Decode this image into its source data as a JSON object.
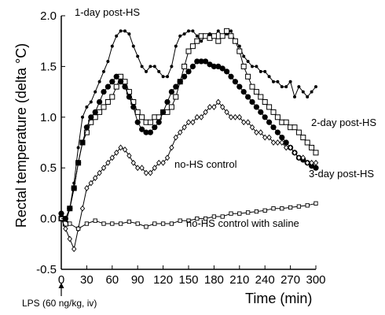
{
  "chart_data": {
    "type": "line",
    "title": "",
    "xlabel": "Time (min)",
    "ylabel": "Rectal temperature (delta °C)",
    "xlim": [
      0,
      300
    ],
    "ylim": [
      -0.5,
      2.0
    ],
    "xticks": [
      0,
      30,
      60,
      90,
      120,
      150,
      180,
      210,
      240,
      270,
      300
    ],
    "yticks": [
      -0.5,
      0.0,
      0.5,
      1.0,
      1.5,
      2.0
    ],
    "xtick_labels": [
      "0",
      "30",
      "60",
      "90",
      "120",
      "150",
      "180",
      "210",
      "240",
      "270",
      "300"
    ],
    "ytick_labels": [
      "-0.5",
      "0.0",
      "0.5",
      "1.0",
      "1.5",
      "2.0"
    ],
    "grid": false,
    "annotation": {
      "text": "LPS (60 ng/kg, iv)",
      "arrow_x": 0
    },
    "series": [
      {
        "name": "1-day post-HS",
        "marker": "small-filled-dot",
        "color": "#000000",
        "x": [
          0,
          5,
          10,
          15,
          20,
          25,
          30,
          35,
          40,
          45,
          50,
          55,
          60,
          65,
          70,
          75,
          80,
          85,
          90,
          95,
          100,
          105,
          110,
          115,
          120,
          125,
          130,
          135,
          140,
          145,
          150,
          155,
          160,
          165,
          170,
          175,
          180,
          185,
          190,
          195,
          200,
          205,
          210,
          215,
          220,
          225,
          230,
          235,
          240,
          245,
          250,
          255,
          260,
          265,
          270,
          275,
          280,
          285,
          290,
          295,
          300
        ],
        "y": [
          0.05,
          0.0,
          0.1,
          0.35,
          0.7,
          1.0,
          1.1,
          1.15,
          1.25,
          1.35,
          1.45,
          1.55,
          1.7,
          1.8,
          1.85,
          1.85,
          1.82,
          1.7,
          1.6,
          1.5,
          1.45,
          1.5,
          1.5,
          1.45,
          1.4,
          1.4,
          1.5,
          1.7,
          1.8,
          1.82,
          1.85,
          1.85,
          1.8,
          1.75,
          1.8,
          1.82,
          1.8,
          1.85,
          1.8,
          1.82,
          1.85,
          1.75,
          1.7,
          1.6,
          1.55,
          1.5,
          1.5,
          1.45,
          1.45,
          1.4,
          1.35,
          1.35,
          1.3,
          1.3,
          1.35,
          1.2,
          1.3,
          1.25,
          1.2,
          1.25,
          1.3
        ]
      },
      {
        "name": "2-day post-HS",
        "marker": "open-square",
        "color": "#000000",
        "x": [
          0,
          5,
          10,
          15,
          20,
          25,
          30,
          35,
          40,
          45,
          50,
          55,
          60,
          65,
          70,
          75,
          80,
          85,
          90,
          95,
          100,
          105,
          110,
          115,
          120,
          125,
          130,
          135,
          140,
          145,
          150,
          155,
          160,
          165,
          170,
          175,
          180,
          185,
          190,
          195,
          200,
          205,
          210,
          215,
          220,
          225,
          230,
          235,
          240,
          245,
          250,
          255,
          260,
          265,
          270,
          275,
          280,
          285,
          290,
          295,
          300
        ],
        "y": [
          0.0,
          -0.05,
          0.1,
          0.3,
          0.55,
          0.75,
          0.85,
          0.95,
          1.0,
          1.05,
          1.1,
          1.15,
          1.2,
          1.3,
          1.4,
          1.35,
          1.25,
          1.15,
          1.05,
          1.0,
          0.95,
          0.95,
          1.0,
          1.0,
          1.05,
          1.05,
          1.1,
          1.2,
          1.35,
          1.5,
          1.65,
          1.7,
          1.75,
          1.8,
          1.8,
          1.78,
          1.8,
          1.75,
          1.8,
          1.85,
          1.8,
          1.75,
          1.65,
          1.5,
          1.4,
          1.3,
          1.25,
          1.2,
          1.15,
          1.1,
          1.05,
          1.0,
          0.95,
          0.95,
          0.9,
          0.9,
          0.85,
          0.8,
          0.75,
          0.7,
          0.65
        ]
      },
      {
        "name": "3-day post-HS",
        "marker": "large-filled-dot",
        "color": "#000000",
        "x": [
          0,
          5,
          10,
          15,
          20,
          25,
          30,
          35,
          40,
          45,
          50,
          55,
          60,
          65,
          70,
          75,
          80,
          85,
          90,
          95,
          100,
          105,
          110,
          115,
          120,
          125,
          130,
          135,
          140,
          145,
          150,
          155,
          160,
          165,
          170,
          175,
          180,
          185,
          190,
          195,
          200,
          205,
          210,
          215,
          220,
          225,
          230,
          235,
          240,
          245,
          250,
          255,
          260,
          265,
          270,
          275,
          280,
          285,
          290,
          295,
          300
        ],
        "y": [
          0.05,
          0.0,
          0.1,
          0.3,
          0.55,
          0.75,
          0.9,
          1.0,
          1.05,
          1.15,
          1.25,
          1.3,
          1.35,
          1.4,
          1.35,
          1.3,
          1.2,
          1.1,
          0.95,
          0.88,
          0.85,
          0.85,
          0.9,
          0.95,
          1.05,
          1.15,
          1.25,
          1.3,
          1.35,
          1.4,
          1.45,
          1.5,
          1.55,
          1.55,
          1.55,
          1.52,
          1.5,
          1.5,
          1.48,
          1.45,
          1.4,
          1.35,
          1.3,
          1.25,
          1.2,
          1.15,
          1.1,
          1.05,
          1.0,
          0.95,
          0.9,
          0.85,
          0.8,
          0.75,
          0.7,
          0.65,
          0.6,
          0.58,
          0.55,
          0.52,
          0.5
        ]
      },
      {
        "name": "no-HS control",
        "marker": "open-diamond",
        "color": "#000000",
        "x": [
          0,
          5,
          10,
          15,
          20,
          25,
          30,
          35,
          40,
          45,
          50,
          55,
          60,
          65,
          70,
          75,
          80,
          85,
          90,
          95,
          100,
          105,
          110,
          115,
          120,
          125,
          130,
          135,
          140,
          145,
          150,
          155,
          160,
          165,
          170,
          175,
          180,
          185,
          190,
          195,
          200,
          205,
          210,
          215,
          220,
          225,
          230,
          235,
          240,
          245,
          250,
          255,
          260,
          265,
          270,
          275,
          280,
          285,
          290,
          295,
          300
        ],
        "y": [
          0.0,
          -0.1,
          -0.2,
          -0.3,
          -0.1,
          0.1,
          0.3,
          0.35,
          0.4,
          0.45,
          0.5,
          0.55,
          0.6,
          0.65,
          0.7,
          0.68,
          0.62,
          0.55,
          0.5,
          0.5,
          0.45,
          0.45,
          0.5,
          0.55,
          0.55,
          0.6,
          0.7,
          0.8,
          0.85,
          0.9,
          0.95,
          0.95,
          1.0,
          1.0,
          1.05,
          1.1,
          1.1,
          1.15,
          1.1,
          1.05,
          1.0,
          1.0,
          1.0,
          0.95,
          0.95,
          0.9,
          0.85,
          0.85,
          0.8,
          0.8,
          0.75,
          0.75,
          0.75,
          0.7,
          0.7,
          0.65,
          0.6,
          0.6,
          0.55,
          0.55,
          0.55
        ]
      },
      {
        "name": "no-HS control with saline",
        "marker": "small-open-square",
        "color": "#000000",
        "x": [
          0,
          10,
          20,
          30,
          40,
          50,
          60,
          70,
          80,
          90,
          100,
          110,
          120,
          130,
          140,
          150,
          160,
          170,
          180,
          190,
          200,
          210,
          220,
          230,
          240,
          250,
          260,
          270,
          280,
          290,
          300
        ],
        "y": [
          0.0,
          -0.05,
          -0.1,
          -0.05,
          -0.02,
          -0.05,
          -0.05,
          -0.05,
          -0.03,
          -0.05,
          -0.08,
          -0.05,
          -0.05,
          -0.05,
          -0.02,
          -0.02,
          0.0,
          0.0,
          0.02,
          0.02,
          0.05,
          0.05,
          0.06,
          0.07,
          0.08,
          0.1,
          0.1,
          0.11,
          0.12,
          0.13,
          0.15
        ]
      }
    ]
  }
}
